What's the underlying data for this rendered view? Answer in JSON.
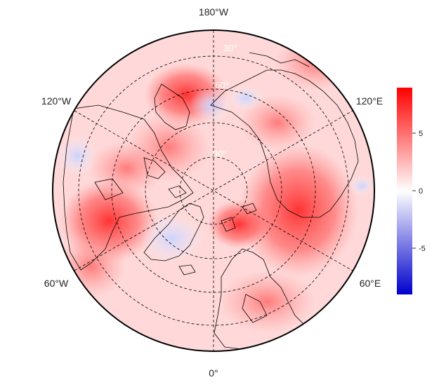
{
  "map": {
    "projection": "north-polar-stereographic",
    "longitude_labels": {
      "top": "180°W",
      "bottom": "0°",
      "upper_left": "120°W",
      "upper_right": "120°E",
      "lower_left": "60°W",
      "lower_right": "60°E"
    },
    "latitude_labels": [
      "30°",
      "60°",
      "90°"
    ],
    "graticule": "dashed",
    "colorbar": {
      "ticks": [
        "5",
        "0",
        "-5"
      ],
      "range": [
        -8.5,
        8.5
      ],
      "colors": {
        "max": "#ff0000",
        "mid": "#ffffff",
        "min": "#0000cc"
      }
    },
    "field_colors": {
      "background_warm": "#ffd6d6",
      "warm": "#ff8080",
      "hot": "#ff3030",
      "cool": "#dde3ff",
      "coast_line": "#000000"
    }
  }
}
